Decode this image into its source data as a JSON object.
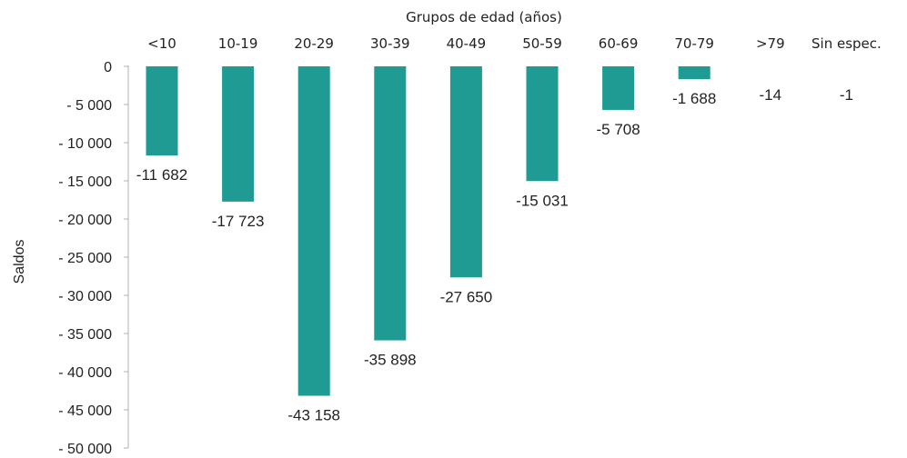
{
  "chart_data": {
    "type": "bar",
    "xlabel": "Grupos de edad (años)",
    "ylabel": "Saldos",
    "categories": [
      "<10",
      "10-19",
      "20-29",
      "30-39",
      "40-49",
      "50-59",
      "60-69",
      "70-79",
      ">79",
      "Sin espec."
    ],
    "values": [
      -11682,
      -17723,
      -43158,
      -35898,
      -27650,
      -15031,
      -5708,
      -1688,
      -14,
      -1
    ],
    "data_labels": [
      "-11 682",
      "-17 723",
      "-43 158",
      "-35 898",
      "-27 650",
      "-15 031",
      "-5 708",
      "-1 688",
      "-14",
      "-1"
    ],
    "ylim": [
      -50000,
      0
    ],
    "yticks": [
      0,
      -5000,
      -10000,
      -15000,
      -20000,
      -25000,
      -30000,
      -35000,
      -40000,
      -45000,
      -50000
    ],
    "ytick_labels": [
      "0",
      "- 5 000",
      "- 10 000",
      "- 15 000",
      "- 20 000",
      "- 25 000",
      "- 30 000",
      "- 35 000",
      "- 40 000",
      "- 45 000",
      "- 50 000"
    ],
    "bar_color": "#1f9b94",
    "axis_color": "#b0b0b0",
    "grid": false,
    "legend": "none",
    "x_axis_position": "top"
  }
}
